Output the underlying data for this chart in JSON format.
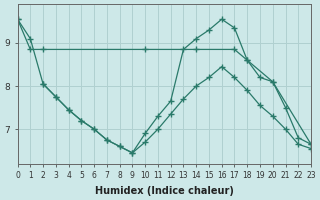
{
  "title": "",
  "xlabel": "Humidex (Indice chaleur)",
  "ylabel": "",
  "background_color": "#cde8e8",
  "grid_color": "#b0d0d0",
  "line_color": "#2a7a6a",
  "series": [
    {
      "x": [
        0,
        1,
        2,
        10,
        14,
        17,
        18,
        20,
        23
      ],
      "y": [
        9.55,
        8.85,
        8.85,
        8.85,
        8.85,
        8.85,
        8.6,
        8.1,
        6.65
      ]
    },
    {
      "x": [
        0,
        1,
        2,
        3,
        4,
        5,
        6,
        7,
        8,
        9,
        10,
        11,
        12,
        13,
        14,
        15,
        16,
        17,
        18,
        19,
        20,
        21,
        22,
        23
      ],
      "y": [
        9.55,
        9.1,
        8.05,
        7.75,
        7.45,
        7.2,
        7.0,
        6.75,
        6.6,
        6.45,
        6.9,
        7.3,
        7.65,
        8.85,
        9.1,
        9.3,
        9.55,
        9.35,
        8.6,
        8.2,
        8.1,
        7.5,
        6.8,
        6.65
      ]
    },
    {
      "x": [
        2,
        3,
        4,
        5,
        6,
        7,
        8,
        9,
        10,
        11,
        12,
        13,
        14,
        15,
        16,
        17,
        18,
        19,
        20,
        21,
        22,
        23
      ],
      "y": [
        8.05,
        7.75,
        7.45,
        7.2,
        7.0,
        6.75,
        6.6,
        6.45,
        6.7,
        7.0,
        7.35,
        7.7,
        8.0,
        8.2,
        8.45,
        8.2,
        7.9,
        7.55,
        7.3,
        7.0,
        6.65,
        6.55
      ]
    }
  ],
  "xlim": [
    0,
    23
  ],
  "ylim": [
    6.2,
    9.9
  ],
  "yticks": [
    7,
    8,
    9
  ],
  "xticks": [
    0,
    1,
    2,
    3,
    4,
    5,
    6,
    7,
    8,
    9,
    10,
    11,
    12,
    13,
    14,
    15,
    16,
    17,
    18,
    19,
    20,
    21,
    22,
    23
  ],
  "xtick_labels": [
    "0",
    "1",
    "2",
    "3",
    "4",
    "5",
    "6",
    "7",
    "8",
    "9",
    "10",
    "11",
    "12",
    "13",
    "14",
    "15",
    "16",
    "17",
    "18",
    "19",
    "20",
    "21",
    "22",
    "23"
  ],
  "marker": "+",
  "markersize": 4,
  "linewidth": 0.9,
  "tick_fontsize": 5.5,
  "xlabel_fontsize": 7
}
